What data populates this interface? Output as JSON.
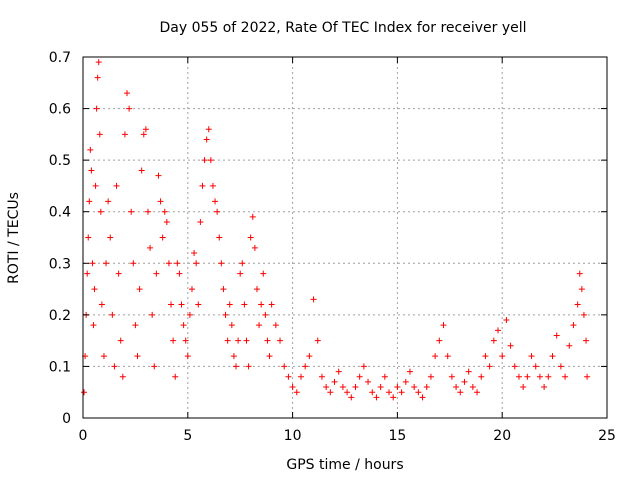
{
  "chart_data": {
    "type": "scatter",
    "title": "Day 055 of 2022, Rate Of TEC Index for receiver yell",
    "xlabel": "GPS time / hours",
    "ylabel": "ROTI / TECUs",
    "xlim": [
      0,
      25
    ],
    "ylim": [
      0,
      0.7
    ],
    "xticks": [
      0,
      5,
      10,
      15,
      20,
      25
    ],
    "yticks": [
      0,
      0.1,
      0.2,
      0.3,
      0.4,
      0.5,
      0.6,
      0.7
    ],
    "xtick_labels": [
      "0",
      "5",
      "10",
      "15",
      "20",
      "25"
    ],
    "ytick_labels": [
      "0",
      "0.1",
      "0.2",
      "0.3",
      "0.4",
      "0.5",
      "0.6",
      "0.7"
    ],
    "grid": true,
    "marker": "+",
    "color": "#ff0000",
    "series": [
      {
        "name": "ROTI",
        "points": [
          [
            0.05,
            0.05
          ],
          [
            0.1,
            0.12
          ],
          [
            0.15,
            0.2
          ],
          [
            0.2,
            0.28
          ],
          [
            0.25,
            0.35
          ],
          [
            0.3,
            0.42
          ],
          [
            0.35,
            0.52
          ],
          [
            0.4,
            0.48
          ],
          [
            0.45,
            0.3
          ],
          [
            0.5,
            0.18
          ],
          [
            0.55,
            0.25
          ],
          [
            0.6,
            0.45
          ],
          [
            0.65,
            0.6
          ],
          [
            0.7,
            0.66
          ],
          [
            0.75,
            0.69
          ],
          [
            0.8,
            0.55
          ],
          [
            0.85,
            0.4
          ],
          [
            0.9,
            0.22
          ],
          [
            1.0,
            0.12
          ],
          [
            1.1,
            0.3
          ],
          [
            1.2,
            0.42
          ],
          [
            1.3,
            0.35
          ],
          [
            1.4,
            0.2
          ],
          [
            1.5,
            0.1
          ],
          [
            1.6,
            0.45
          ],
          [
            1.7,
            0.28
          ],
          [
            1.8,
            0.15
          ],
          [
            1.9,
            0.08
          ],
          [
            2.0,
            0.55
          ],
          [
            2.1,
            0.63
          ],
          [
            2.2,
            0.6
          ],
          [
            2.3,
            0.4
          ],
          [
            2.4,
            0.3
          ],
          [
            2.5,
            0.18
          ],
          [
            2.6,
            0.12
          ],
          [
            2.7,
            0.25
          ],
          [
            2.8,
            0.48
          ],
          [
            2.9,
            0.55
          ],
          [
            3.0,
            0.56
          ],
          [
            3.1,
            0.4
          ],
          [
            3.2,
            0.33
          ],
          [
            3.3,
            0.2
          ],
          [
            3.4,
            0.1
          ],
          [
            3.5,
            0.28
          ],
          [
            3.6,
            0.47
          ],
          [
            3.7,
            0.42
          ],
          [
            3.8,
            0.35
          ],
          [
            3.9,
            0.4
          ],
          [
            4.0,
            0.38
          ],
          [
            4.1,
            0.3
          ],
          [
            4.2,
            0.22
          ],
          [
            4.3,
            0.15
          ],
          [
            4.4,
            0.08
          ],
          [
            4.5,
            0.3
          ],
          [
            4.6,
            0.28
          ],
          [
            4.7,
            0.22
          ],
          [
            4.8,
            0.18
          ],
          [
            4.9,
            0.15
          ],
          [
            5.0,
            0.12
          ],
          [
            5.1,
            0.2
          ],
          [
            5.2,
            0.25
          ],
          [
            5.3,
            0.32
          ],
          [
            5.4,
            0.3
          ],
          [
            5.5,
            0.22
          ],
          [
            5.6,
            0.38
          ],
          [
            5.7,
            0.45
          ],
          [
            5.8,
            0.5
          ],
          [
            5.9,
            0.54
          ],
          [
            6.0,
            0.56
          ],
          [
            6.1,
            0.5
          ],
          [
            6.2,
            0.45
          ],
          [
            6.3,
            0.42
          ],
          [
            6.4,
            0.4
          ],
          [
            6.5,
            0.35
          ],
          [
            6.6,
            0.3
          ],
          [
            6.7,
            0.25
          ],
          [
            6.8,
            0.2
          ],
          [
            6.9,
            0.15
          ],
          [
            7.0,
            0.22
          ],
          [
            7.1,
            0.18
          ],
          [
            7.2,
            0.12
          ],
          [
            7.3,
            0.1
          ],
          [
            7.4,
            0.15
          ],
          [
            7.5,
            0.28
          ],
          [
            7.6,
            0.3
          ],
          [
            7.7,
            0.22
          ],
          [
            7.8,
            0.15
          ],
          [
            7.9,
            0.1
          ],
          [
            8.0,
            0.35
          ],
          [
            8.1,
            0.39
          ],
          [
            8.2,
            0.33
          ],
          [
            8.3,
            0.25
          ],
          [
            8.4,
            0.18
          ],
          [
            8.5,
            0.22
          ],
          [
            8.6,
            0.28
          ],
          [
            8.7,
            0.2
          ],
          [
            8.8,
            0.15
          ],
          [
            8.9,
            0.12
          ],
          [
            9.0,
            0.22
          ],
          [
            9.2,
            0.18
          ],
          [
            9.4,
            0.15
          ],
          [
            9.6,
            0.1
          ],
          [
            9.8,
            0.08
          ],
          [
            10.0,
            0.06
          ],
          [
            10.2,
            0.05
          ],
          [
            10.4,
            0.08
          ],
          [
            10.6,
            0.1
          ],
          [
            10.8,
            0.12
          ],
          [
            11.0,
            0.23
          ],
          [
            11.2,
            0.15
          ],
          [
            11.4,
            0.08
          ],
          [
            11.6,
            0.06
          ],
          [
            11.8,
            0.05
          ],
          [
            12.0,
            0.07
          ],
          [
            12.2,
            0.09
          ],
          [
            12.4,
            0.06
          ],
          [
            12.6,
            0.05
          ],
          [
            12.8,
            0.04
          ],
          [
            13.0,
            0.06
          ],
          [
            13.2,
            0.08
          ],
          [
            13.4,
            0.1
          ],
          [
            13.6,
            0.07
          ],
          [
            13.8,
            0.05
          ],
          [
            14.0,
            0.04
          ],
          [
            14.2,
            0.06
          ],
          [
            14.4,
            0.08
          ],
          [
            14.6,
            0.05
          ],
          [
            14.8,
            0.04
          ],
          [
            15.0,
            0.06
          ],
          [
            15.2,
            0.05
          ],
          [
            15.4,
            0.07
          ],
          [
            15.6,
            0.09
          ],
          [
            15.8,
            0.06
          ],
          [
            16.0,
            0.05
          ],
          [
            16.2,
            0.04
          ],
          [
            16.4,
            0.06
          ],
          [
            16.6,
            0.08
          ],
          [
            16.8,
            0.12
          ],
          [
            17.0,
            0.15
          ],
          [
            17.2,
            0.18
          ],
          [
            17.4,
            0.12
          ],
          [
            17.6,
            0.08
          ],
          [
            17.8,
            0.06
          ],
          [
            18.0,
            0.05
          ],
          [
            18.2,
            0.07
          ],
          [
            18.4,
            0.09
          ],
          [
            18.6,
            0.06
          ],
          [
            18.8,
            0.05
          ],
          [
            19.0,
            0.08
          ],
          [
            19.2,
            0.12
          ],
          [
            19.4,
            0.1
          ],
          [
            19.6,
            0.15
          ],
          [
            19.8,
            0.17
          ],
          [
            20.0,
            0.12
          ],
          [
            20.2,
            0.19
          ],
          [
            20.4,
            0.14
          ],
          [
            20.6,
            0.1
          ],
          [
            20.8,
            0.08
          ],
          [
            21.0,
            0.06
          ],
          [
            21.2,
            0.08
          ],
          [
            21.4,
            0.12
          ],
          [
            21.6,
            0.1
          ],
          [
            21.8,
            0.08
          ],
          [
            22.0,
            0.06
          ],
          [
            22.2,
            0.08
          ],
          [
            22.4,
            0.12
          ],
          [
            22.6,
            0.16
          ],
          [
            22.8,
            0.1
          ],
          [
            23.0,
            0.08
          ],
          [
            23.2,
            0.14
          ],
          [
            23.4,
            0.18
          ],
          [
            23.6,
            0.22
          ],
          [
            23.7,
            0.28
          ],
          [
            23.8,
            0.25
          ],
          [
            23.9,
            0.2
          ],
          [
            24.0,
            0.15
          ],
          [
            24.05,
            0.08
          ]
        ]
      }
    ]
  }
}
